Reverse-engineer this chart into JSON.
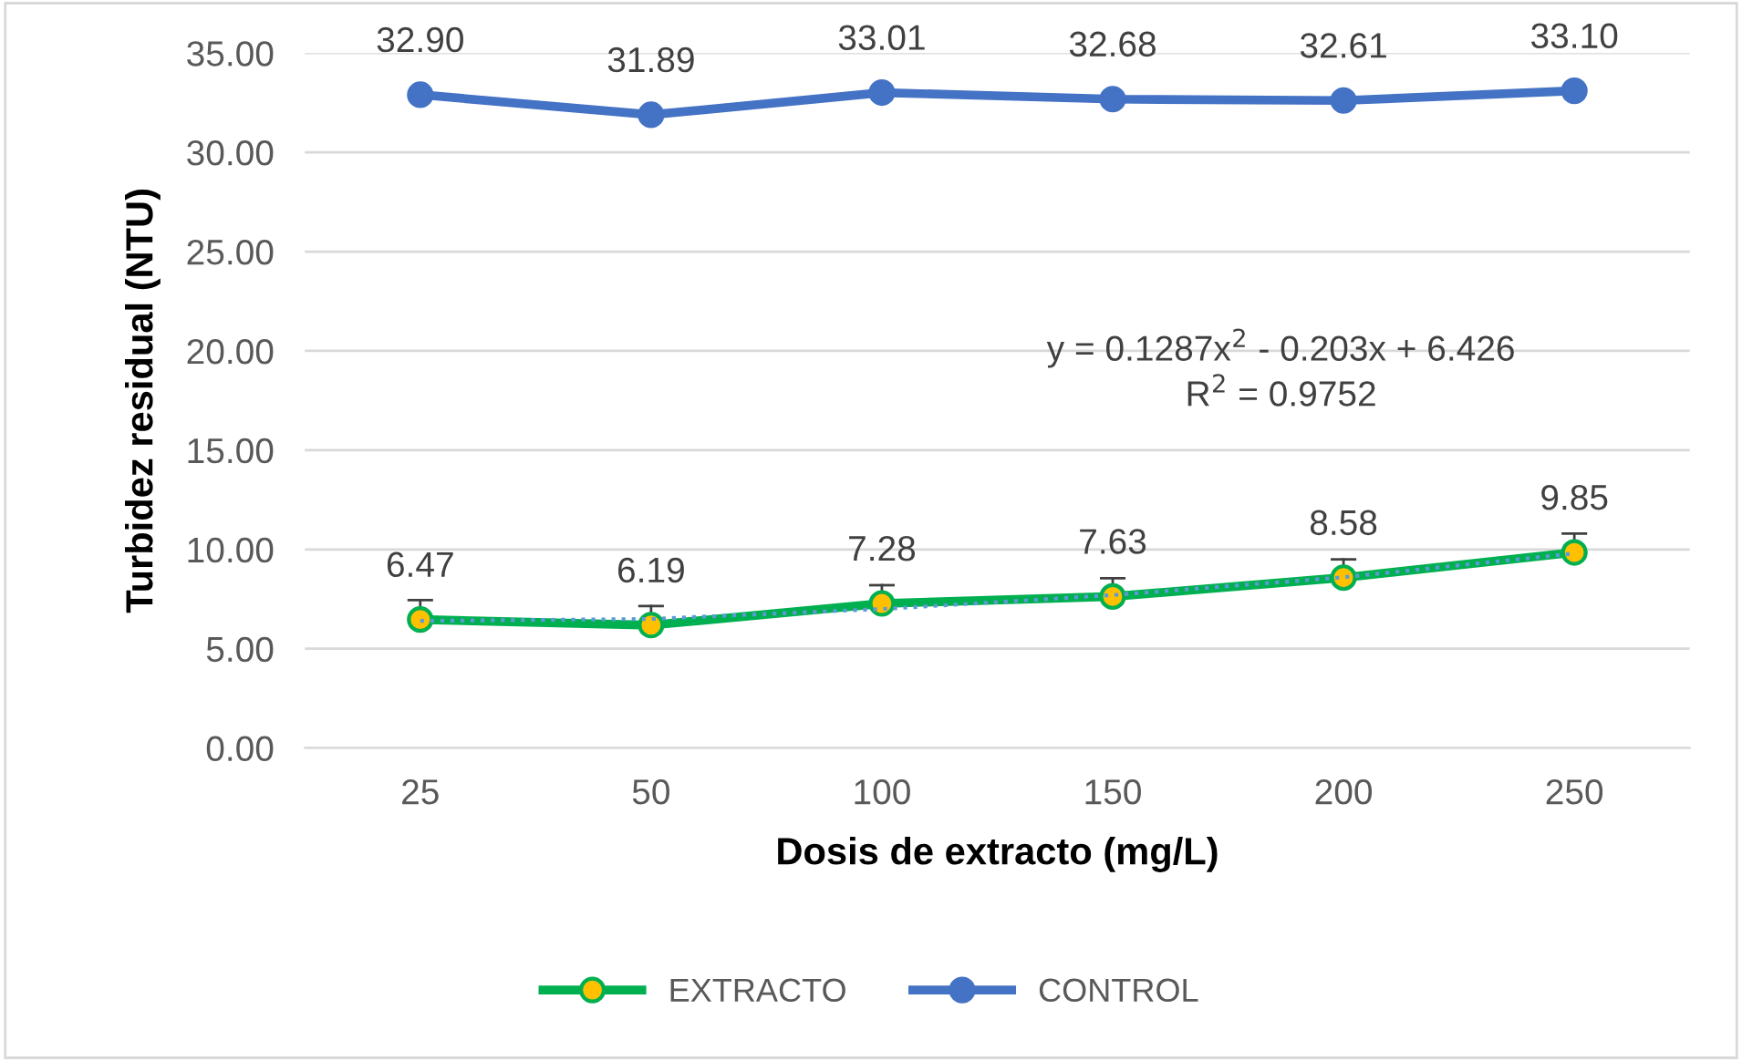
{
  "chart_data": {
    "type": "line",
    "xlabel": "Dosis de extracto (mg/L)",
    "ylabel": "Turbidez residual (NTU)",
    "categories": [
      "25",
      "50",
      "100",
      "150",
      "200",
      "250"
    ],
    "series": [
      {
        "name": "EXTRACTO",
        "color": "#00b050",
        "values": [
          6.47,
          6.19,
          7.28,
          7.63,
          8.58,
          9.85
        ],
        "value_labels": [
          "6.47",
          "6.19",
          "7.28",
          "7.63",
          "8.58",
          "9.85"
        ],
        "errors": [
          [
            6.47,
            7.45
          ],
          [
            6.19,
            7.15
          ],
          [
            7.28,
            8.2
          ],
          [
            7.63,
            8.55
          ],
          [
            8.58,
            9.5
          ],
          [
            9.85,
            10.8
          ]
        ],
        "marker": "circle"
      },
      {
        "name": "CONTROL",
        "color": "#4472c4",
        "values": [
          32.9,
          31.89,
          33.01,
          32.68,
          32.61,
          33.1
        ],
        "value_labels": [
          "32.90",
          "31.89",
          "33.01",
          "32.68",
          "32.61",
          "33.10"
        ],
        "marker": "circle"
      },
      {
        "type": "line",
        "color": "#5b9bd5",
        "values": [
          6.4,
          6.5,
          7.0,
          7.7,
          8.6,
          9.8
        ],
        "line_style": "dotted",
        "marker": "none"
      }
    ],
    "ylim": [
      0,
      35
    ],
    "yticks": [
      {
        "value": 0,
        "label": "0.00"
      },
      {
        "value": 5,
        "label": "5.00"
      },
      {
        "value": 10,
        "label": "10.00"
      },
      {
        "value": 15,
        "label": "15.00"
      },
      {
        "value": 20,
        "label": "20.00"
      },
      {
        "value": 25,
        "label": "25.00"
      },
      {
        "value": 30,
        "label": "30.00"
      },
      {
        "value": 35,
        "label": "35.00"
      }
    ],
    "annotations": [
      "y = 0.1287x$^{2}$ - 0.203x + 6.426",
      "R$^{2}$ = 0.9752"
    ],
    "grid": "y",
    "legend": "bottom"
  }
}
